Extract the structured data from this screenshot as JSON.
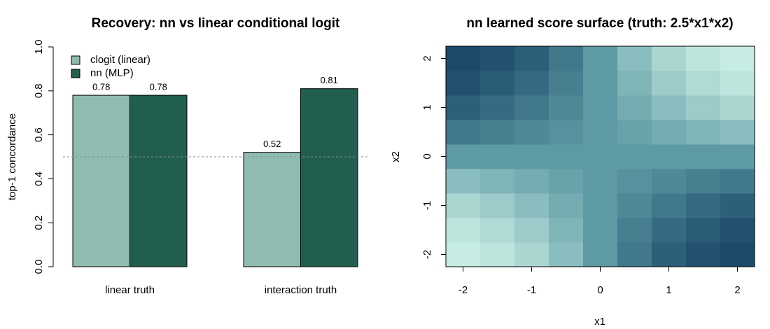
{
  "chart_data": [
    {
      "type": "bar",
      "title": "Recovery: nn vs linear conditional logit",
      "y_label": "top-1 concordance",
      "categories": [
        "linear truth",
        "interaction truth"
      ],
      "series": [
        {
          "name": "clogit (linear)",
          "color": "#8fbcb1",
          "values": [
            0.78,
            0.52
          ]
        },
        {
          "name": "nn (MLP)",
          "color": "#225e50",
          "values": [
            0.78,
            0.81
          ]
        }
      ],
      "ylim": [
        0,
        1
      ],
      "yticks": [
        {
          "value": 0,
          "label": "0.0"
        },
        0.2,
        0.4,
        0.6,
        0.8,
        {
          "value": 1,
          "label": "1.0"
        }
      ],
      "reference_line": 0.5,
      "legend": "top-left"
    },
    {
      "type": "heatmap",
      "title": "nn learned score surface (truth: 2.5*x1*x2)",
      "x_label": "x1",
      "y_label": "x2",
      "x": [
        -2,
        -1.5,
        -1,
        -0.5,
        0,
        0.5,
        1,
        1.5,
        2
      ],
      "y": [
        -2,
        -1.5,
        -1,
        -0.5,
        0,
        0.5,
        1,
        1.5,
        2
      ],
      "z": [
        [
          5.51,
          5.06,
          4.03,
          2.37,
          0,
          -2.37,
          -4.03,
          -5.06,
          -5.51
        ],
        [
          5.06,
          4.3,
          3.29,
          1.83,
          0,
          -1.83,
          -3.29,
          -4.3,
          -5.06
        ],
        [
          4.03,
          3.29,
          2.37,
          1.24,
          0,
          -1.24,
          -2.37,
          -3.29,
          -4.03
        ],
        [
          2.37,
          1.83,
          1.24,
          0.62,
          0,
          -0.62,
          -1.24,
          -1.83,
          -2.37
        ],
        [
          0,
          0,
          0,
          0,
          0,
          0,
          0,
          0,
          0
        ],
        [
          -2.37,
          -1.83,
          -1.24,
          -0.62,
          0,
          0.62,
          1.24,
          1.83,
          2.37
        ],
        [
          -4.03,
          -3.29,
          -2.37,
          -1.24,
          0,
          1.24,
          2.37,
          3.29,
          4.03
        ],
        [
          -5.06,
          -4.3,
          -3.29,
          -1.83,
          0,
          1.83,
          3.29,
          4.3,
          5.06
        ],
        [
          -5.51,
          -5.06,
          -4.03,
          -2.37,
          0,
          2.37,
          4.03,
          5.06,
          5.51
        ]
      ],
      "colors": [
        "#1d4a6b",
        "#5d9aa3",
        "#c6ece3"
      ],
      "xlim": [
        -2.25,
        2.25
      ],
      "ylim": [
        -2.25,
        2.25
      ],
      "xticks": [
        -2,
        -1,
        0,
        1,
        2
      ],
      "yticks": [
        -2,
        -1,
        0,
        1,
        2
      ]
    }
  ]
}
